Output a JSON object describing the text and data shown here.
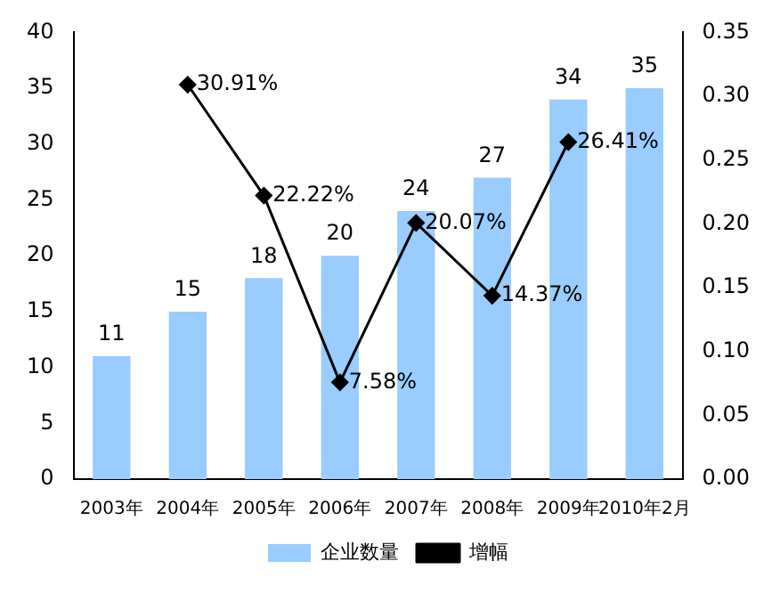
{
  "chart_data": {
    "type": "bar",
    "categories": [
      "2003年",
      "2004年",
      "2005年",
      "2006年",
      "2007年",
      "2008年",
      "2009年",
      "2010年2月"
    ],
    "series": [
      {
        "name": "企业数量",
        "color": "#99ccff",
        "values": [
          11,
          15,
          18,
          20,
          24,
          27,
          34,
          35
        ],
        "value_labels": [
          "11",
          "15",
          "18",
          "20",
          "24",
          "27",
          "34",
          "35"
        ]
      },
      {
        "name": "增幅",
        "type": "line",
        "axis": "y2",
        "color": "#000000",
        "values": [
          null,
          0.3091,
          0.2222,
          0.0758,
          0.2007,
          0.1437,
          0.2641,
          null
        ],
        "value_labels": [
          null,
          "30.91%",
          "22.22%",
          "7.58%",
          "20.07%",
          "14.37%",
          "26.41%",
          null
        ]
      }
    ],
    "ylim": [
      0,
      40
    ],
    "yticks": [
      0,
      5,
      10,
      15,
      20,
      25,
      30,
      35,
      40
    ],
    "y2lim": [
      0,
      0.35
    ],
    "y2ticks": [
      {
        "value": 0,
        "label": "0.00"
      },
      {
        "value": 0.05,
        "label": "0.05"
      },
      {
        "value": 0.1,
        "label": "0.10"
      },
      {
        "value": 0.15,
        "label": "0.15"
      },
      {
        "value": 0.2,
        "label": "0.20"
      },
      {
        "value": 0.25,
        "label": "0.25"
      },
      {
        "value": 0.3,
        "label": "0.30"
      },
      {
        "value": 0.35,
        "label": "0.35"
      }
    ],
    "legend": "bottom",
    "marker": "diamond",
    "line_style": "solid",
    "grid": false
  }
}
